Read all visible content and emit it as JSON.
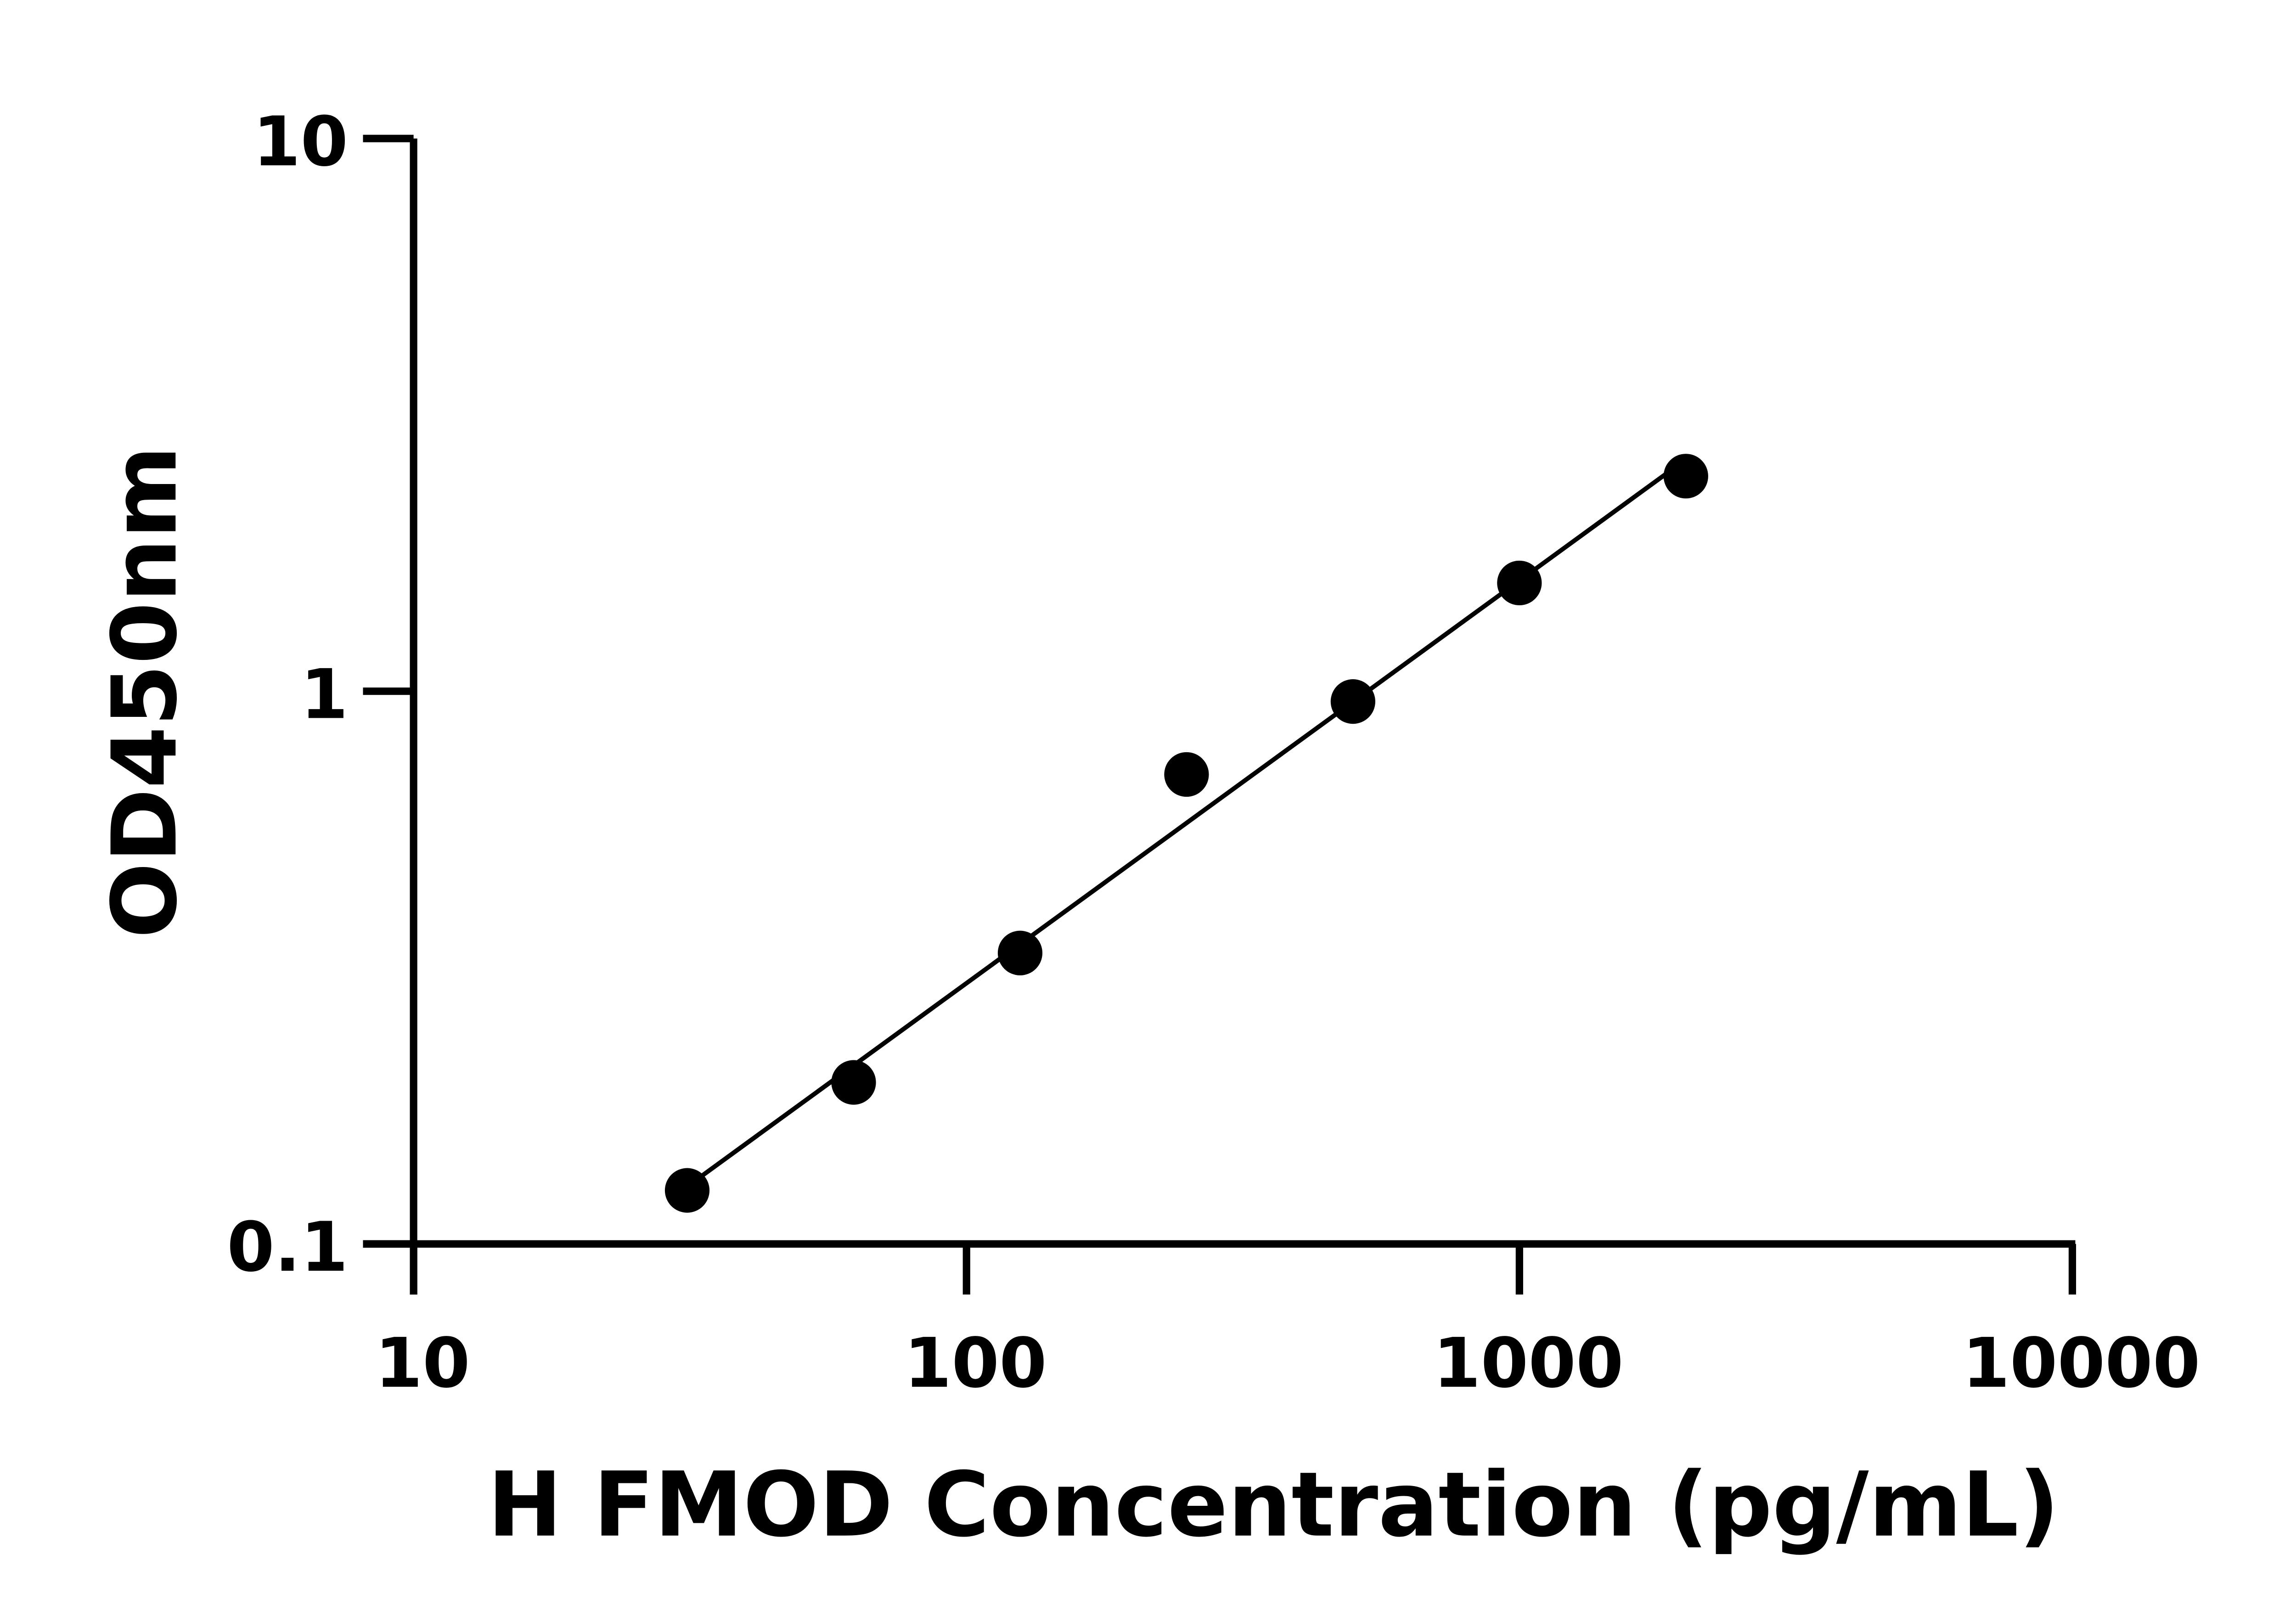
{
  "chart_data": {
    "type": "scatter",
    "title": "",
    "xlabel": "H FMOD Concentration (pg/mL)",
    "ylabel": "OD450nm",
    "xscale": "log",
    "yscale": "log",
    "xlim": [
      10,
      10000
    ],
    "ylim": [
      0.1,
      10
    ],
    "xticks": [
      "10",
      "100",
      "1000",
      "10000"
    ],
    "yticks": [
      "0.1",
      "1",
      "10"
    ],
    "grid": false,
    "legend": "none",
    "colors": {
      "points": "#000000",
      "line": "#000000"
    },
    "x": [
      31.25,
      62.5,
      125,
      250,
      500,
      1000,
      2000
    ],
    "y": [
      0.125,
      0.196,
      0.336,
      0.707,
      0.958,
      1.57,
      2.45
    ],
    "fit_line": true
  }
}
